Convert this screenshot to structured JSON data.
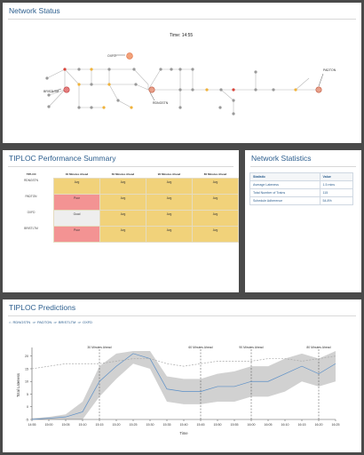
{
  "network_panel": {
    "title": "Network Status",
    "time_label": "Time: 14:55",
    "station_labels": {
      "oxfd": "OXFD",
      "padton": "PADTON",
      "bristltm": "BRISTLTM",
      "rdngstn": "RDNGSTN"
    }
  },
  "tiploc_panel": {
    "title": "TIPLOC Performance Summary",
    "headers": [
      "TIPLOC",
      "30 Minutes Ahead",
      "60 Minutes Ahead",
      "90 Minutes Ahead",
      "80 Minutes Ahead"
    ],
    "rows": [
      {
        "tiploc": "RDNGSTN",
        "cells": [
          {
            "text": "Avg",
            "status": "avg"
          },
          {
            "text": "Avg",
            "status": "avg"
          },
          {
            "text": "Avg",
            "status": "avg"
          },
          {
            "text": "Avg",
            "status": "avg"
          }
        ]
      },
      {
        "tiploc": "PADTON",
        "cells": [
          {
            "text": "Poor",
            "status": "poor"
          },
          {
            "text": "Avg",
            "status": "avg"
          },
          {
            "text": "Avg",
            "status": "avg"
          },
          {
            "text": "Avg",
            "status": "avg"
          }
        ]
      },
      {
        "tiploc": "OXFD",
        "cells": [
          {
            "text": "Good",
            "status": "good"
          },
          {
            "text": "Avg",
            "status": "avg"
          },
          {
            "text": "Avg",
            "status": "avg"
          },
          {
            "text": "Avg",
            "status": "avg"
          }
        ]
      },
      {
        "tiploc": "BRISTLTM",
        "cells": [
          {
            "text": "Poor",
            "status": "poor"
          },
          {
            "text": "Avg",
            "status": "avg"
          },
          {
            "text": "Avg",
            "status": "avg"
          },
          {
            "text": "Avg",
            "status": "avg"
          }
        ]
      }
    ],
    "colors": {
      "avg": "#f1d27a",
      "poor": "#f39393",
      "good": "#eeeeee"
    }
  },
  "stats_panel": {
    "title": "Network Statistics",
    "headers": [
      "Statistic",
      "Value"
    ],
    "rows": [
      {
        "label": "Average Lateness",
        "value": "1.5 mins"
      },
      {
        "label": "Total Number of Trains",
        "value": "115"
      },
      {
        "label": "Schedule Adherence",
        "value": "54.8%"
      }
    ]
  },
  "predictions_panel": {
    "title": "TIPLOC Predictions",
    "route_links": [
      "RDNGSTN",
      "PADTON",
      "BRISTLTM",
      "OXFD"
    ],
    "route_separator": "⇒",
    "route_prefix": "⌂"
  },
  "chart_data": {
    "type": "line",
    "xlabel": "Time",
    "ylabel": "Total Lateness",
    "x": [
      "14:55",
      "15:00",
      "15:05",
      "15:10",
      "15:15",
      "15:20",
      "15:25",
      "15:30",
      "15:35",
      "15:40",
      "15:45",
      "15:50",
      "15:55",
      "16:00",
      "16:05",
      "16:10",
      "16:15",
      "16:20",
      "16:25"
    ],
    "xticks": [
      "14:55",
      "15:00",
      "15:05",
      "15:10",
      "15:15",
      "15:20",
      "15:25",
      "15:30",
      "15:35",
      "15:40",
      "15:45",
      "15:50",
      "15:55",
      "16:00",
      "16:05",
      "16:10",
      "16:15",
      "16:20",
      "16:25"
    ],
    "ylim": [
      -5,
      22
    ],
    "yticks": [
      -5,
      0,
      5,
      10,
      15,
      20
    ],
    "series": [
      {
        "values": [
          -5,
          -4.5,
          -4,
          -2,
          10,
          16,
          21,
          19,
          7,
          6,
          6,
          8,
          8,
          10,
          10,
          13,
          16,
          13,
          17
        ],
        "style": "solid",
        "color": "#5b8fc7"
      },
      {
        "values": [
          15,
          16,
          17,
          17,
          17,
          18,
          19,
          19,
          17,
          16,
          17,
          18,
          18,
          18,
          19,
          19,
          18,
          19,
          20
        ],
        "style": "dashed",
        "color": "#aaaaaa"
      }
    ],
    "band": {
      "lower": [
        -5,
        -5,
        -5,
        -5,
        4,
        11,
        17,
        15,
        2,
        1,
        1,
        2,
        2,
        4,
        4,
        6,
        10,
        8,
        10
      ],
      "upper": [
        -4.5,
        -4,
        -3,
        2,
        16,
        21,
        22,
        22,
        12,
        11,
        11,
        13,
        14,
        16,
        16,
        19,
        21,
        19,
        22
      ],
      "color": "#c9c9c9"
    },
    "markers": [
      {
        "x": "15:15",
        "label": "30 Minutes Ahead"
      },
      {
        "x": "15:45",
        "label": "60 Minutes Ahead"
      },
      {
        "x": "16:00",
        "label": "90 Minutes Ahead"
      },
      {
        "x": "16:20",
        "label": "80 Minutes Ahead"
      }
    ],
    "grid": false
  }
}
